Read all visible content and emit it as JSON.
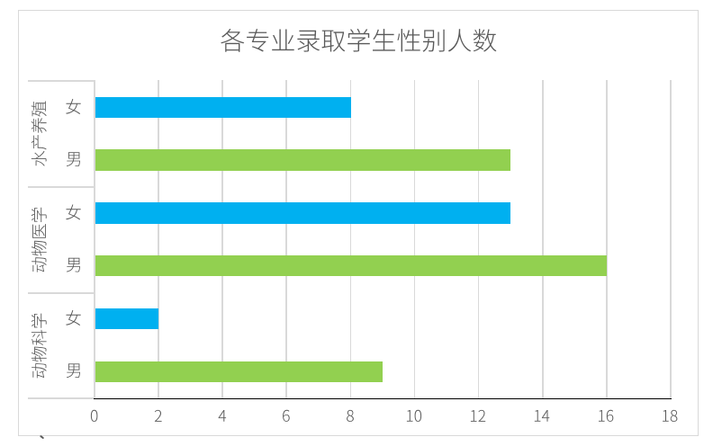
{
  "window": {
    "background": "#FFFFFF"
  },
  "chart": {
    "title": "各专业录取学生性别人数",
    "colors": {
      "border": "#D9D9D9",
      "gridline": "#D9D9D9",
      "axis_line": "#000000",
      "text": "#595959",
      "female_bar": "#00B0F0",
      "male_bar": "#92D050"
    }
  },
  "chart_data": {
    "type": "bar",
    "orientation": "horizontal",
    "title": "各专业录取学生性别人数",
    "x_axis": {
      "min": 0,
      "max": 18,
      "tick_interval": 2,
      "tick_labels": [
        "0",
        "2",
        "4",
        "6",
        "8",
        "10",
        "12",
        "14",
        "16",
        "18"
      ],
      "gridlines": true
    },
    "legend": "none",
    "groups": [
      {
        "label": "水产养殖",
        "bars": [
          {
            "label": "女",
            "value": 8,
            "color": "#00B0F0"
          },
          {
            "label": "男",
            "value": 13,
            "color": "#92D050"
          }
        ]
      },
      {
        "label": "动物医学",
        "bars": [
          {
            "label": "女",
            "value": 13,
            "color": "#00B0F0"
          },
          {
            "label": "男",
            "value": 16,
            "color": "#92D050"
          }
        ]
      },
      {
        "label": "动物科学",
        "bars": [
          {
            "label": "女",
            "value": 2,
            "color": "#00B0F0"
          },
          {
            "label": "男",
            "value": 9,
            "color": "#92D050"
          }
        ]
      }
    ]
  }
}
